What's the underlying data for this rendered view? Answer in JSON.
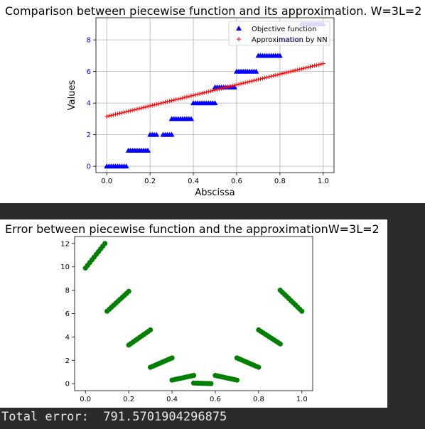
{
  "output": {
    "total_error_text": "Total error:  791.5701904296875"
  },
  "chart_data": [
    {
      "type": "scatter",
      "title": "Comparison between piecewise function and its approximation. W=3L=2",
      "xlabel": "Abscissa",
      "ylabel": "Values",
      "xlim": [
        -0.05,
        1.05
      ],
      "ylim": [
        -0.4,
        9.4
      ],
      "xticks": [
        0.0,
        0.2,
        0.4,
        0.6,
        0.8,
        1.0
      ],
      "xtick_labels": [
        "0.0",
        "0.2",
        "0.4",
        "0.6",
        "0.8",
        "1.0"
      ],
      "yticks": [
        0,
        2,
        4,
        6,
        8
      ],
      "ytick_labels": [
        "0",
        "2",
        "4",
        "6",
        "8"
      ],
      "grid": true,
      "legend_position": "top-right",
      "ytick_color": "#0000ff",
      "series": [
        {
          "name": "Objective function",
          "marker": "triangle",
          "color": "#0000ff",
          "segments": [
            {
              "x_start": 0.0,
              "x_end": 0.09,
              "y": 0
            },
            {
              "x_start": 0.1,
              "x_end": 0.19,
              "y": 1
            },
            {
              "x_start": 0.2,
              "x_end": 0.23,
              "y": 2
            },
            {
              "x_start": 0.26,
              "x_end": 0.3,
              "y": 2
            },
            {
              "x_start": 0.3,
              "x_end": 0.39,
              "y": 3
            },
            {
              "x_start": 0.4,
              "x_end": 0.5,
              "y": 4
            },
            {
              "x_start": 0.5,
              "x_end": 0.59,
              "y": 5
            },
            {
              "x_start": 0.6,
              "x_end": 0.69,
              "y": 6
            },
            {
              "x_start": 0.7,
              "x_end": 0.8,
              "y": 7
            },
            {
              "x_start": 0.8,
              "x_end": 0.89,
              "y": 8
            },
            {
              "x_start": 0.9,
              "x_end": 1.0,
              "y": 9
            }
          ]
        },
        {
          "name": "Approximation by NN",
          "marker": "plus",
          "color": "#ff0000",
          "line": {
            "x_start": 0.0,
            "y_start": 3.15,
            "x_end": 1.0,
            "y_end": 6.5
          }
        }
      ]
    },
    {
      "type": "scatter",
      "title": "Error between piecewise function and the approximationW=3L=2",
      "xlabel": "",
      "ylabel": "",
      "xlim": [
        -0.05,
        1.05
      ],
      "ylim": [
        -0.6,
        12.6
      ],
      "xticks": [
        0.0,
        0.2,
        0.4,
        0.6,
        0.8,
        1.0
      ],
      "xtick_labels": [
        "0.0",
        "0.2",
        "0.4",
        "0.6",
        "0.8",
        "1.0"
      ],
      "yticks": [
        0,
        2,
        4,
        6,
        8,
        10,
        12
      ],
      "ytick_labels": [
        "0",
        "2",
        "4",
        "6",
        "8",
        "10",
        "12"
      ],
      "grid": false,
      "series": [
        {
          "name": "",
          "marker": "circle",
          "color": "#008000",
          "segments": [
            {
              "x_start": 0.0,
              "x_end": 0.09,
              "y_start": 9.9,
              "y_end": 12.0
            },
            {
              "x_start": 0.1,
              "x_end": 0.2,
              "y_start": 6.2,
              "y_end": 7.9
            },
            {
              "x_start": 0.2,
              "x_end": 0.3,
              "y_start": 3.3,
              "y_end": 4.6
            },
            {
              "x_start": 0.3,
              "x_end": 0.4,
              "y_start": 1.4,
              "y_end": 2.2
            },
            {
              "x_start": 0.4,
              "x_end": 0.5,
              "y_start": 0.3,
              "y_end": 0.7
            },
            {
              "x_start": 0.5,
              "x_end": 0.58,
              "y_start": 0.05,
              "y_end": 0.0
            },
            {
              "x_start": 0.6,
              "x_end": 0.7,
              "y_start": 0.7,
              "y_end": 0.3
            },
            {
              "x_start": 0.7,
              "x_end": 0.8,
              "y_start": 2.2,
              "y_end": 1.4
            },
            {
              "x_start": 0.8,
              "x_end": 0.9,
              "y_start": 4.6,
              "y_end": 3.4
            },
            {
              "x_start": 0.9,
              "x_end": 1.0,
              "y_start": 8.0,
              "y_end": 6.2
            }
          ]
        }
      ]
    }
  ]
}
